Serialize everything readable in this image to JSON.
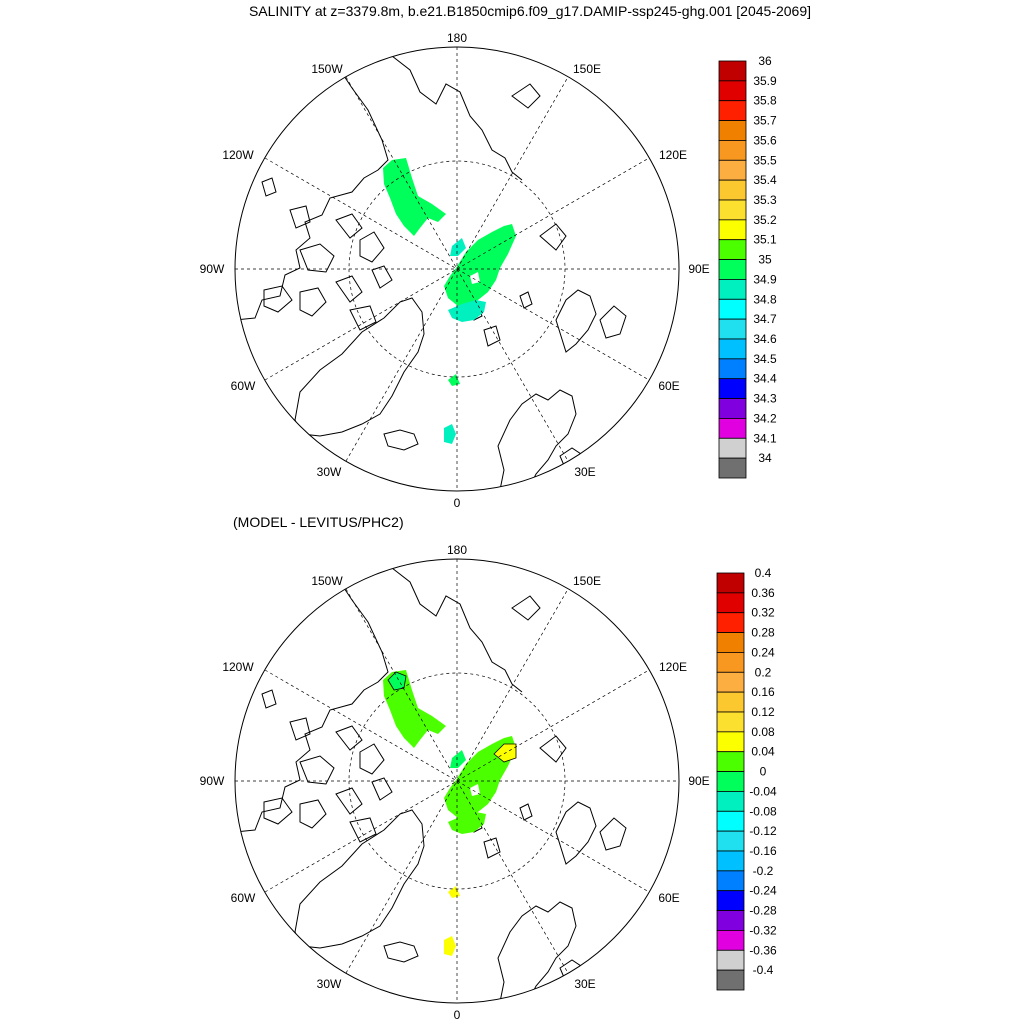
{
  "title": "SALINITY at z=3379.8m, b.e21.B1850cmip6.f09_g17.DAMIP-ssp245-ghg.001 [2045-2069]",
  "subtitle": "(MODEL - LEVITUS/PHC2)",
  "longitude_labels": {
    "lon_180": "180",
    "lon_150W": "150W",
    "lon_150E": "150E",
    "lon_120W": "120W",
    "lon_120E": "120E",
    "lon_90W": "90W",
    "lon_90E": "90E",
    "lon_60W": "60W",
    "lon_60E": "60E",
    "lon_30W": "30W",
    "lon_30E": "30E",
    "lon_0": "0"
  },
  "map_projection": "north polar stereographic",
  "panels": [
    {
      "name": "salinity",
      "colorbar": {
        "labels": [
          "36",
          "35.9",
          "35.8",
          "35.7",
          "35.6",
          "35.5",
          "35.4",
          "35.3",
          "35.2",
          "35.1",
          "35",
          "34.9",
          "34.8",
          "34.7",
          "34.6",
          "34.5",
          "34.4",
          "34.3",
          "34.2",
          "34.1",
          "34"
        ],
        "colors": [
          "#c00000",
          "#e00000",
          "#ff2000",
          "#f08000",
          "#f89820",
          "#fcae40",
          "#fcc830",
          "#fce030",
          "#fcff00",
          "#4cff00",
          "#00ff5a",
          "#00f0c0",
          "#00ffff",
          "#20e0f0",
          "#00c0ff",
          "#0080ff",
          "#0000ff",
          "#8000e0",
          "#e000e0",
          "#d0d0d0",
          "#707070"
        ]
      }
    },
    {
      "name": "difference",
      "colorbar": {
        "labels": [
          "0.4",
          "0.36",
          "0.32",
          "0.28",
          "0.24",
          "0.2",
          "0.16",
          "0.12",
          "0.08",
          "0.04",
          "0",
          "-0.04",
          "-0.08",
          "-0.12",
          "-0.16",
          "-0.2",
          "-0.24",
          "-0.28",
          "-0.32",
          "-0.36",
          "-0.4"
        ],
        "colors": [
          "#c00000",
          "#e00000",
          "#ff2000",
          "#f08000",
          "#f89820",
          "#fcae40",
          "#fcc830",
          "#fce030",
          "#fcff00",
          "#4cff00",
          "#00ff5a",
          "#00f0c0",
          "#00ffff",
          "#20e0f0",
          "#00c0ff",
          "#0080ff",
          "#0000ff",
          "#8000e0",
          "#e000e0",
          "#d0d0d0",
          "#707070"
        ]
      }
    }
  ]
}
